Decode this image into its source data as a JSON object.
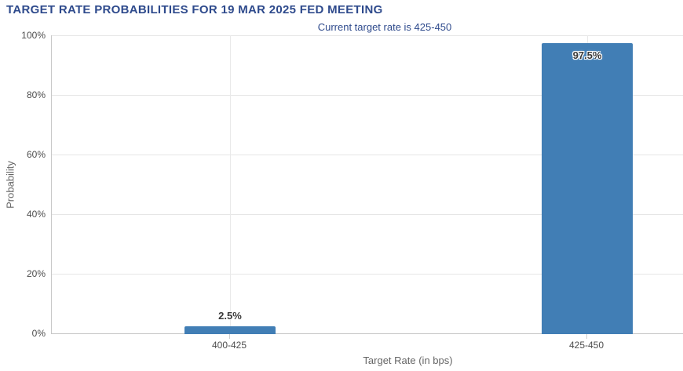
{
  "chart": {
    "title": "TARGET RATE PROBABILITIES FOR 19 MAR 2025 FED MEETING",
    "subtitle": "Current target rate is 425-450",
    "xlabel": "Target Rate (in bps)",
    "ylabel": "Probability"
  },
  "chart_data": {
    "type": "bar",
    "title": "TARGET RATE PROBABILITIES FOR 19 MAR 2025 FED MEETING",
    "subtitle": "Current target rate is 425-450",
    "categories": [
      "400-425",
      "425-450"
    ],
    "values": [
      2.5,
      97.5
    ],
    "data_labels": [
      "2.5%",
      "97.5%"
    ],
    "xlabel": "Target Rate (in bps)",
    "ylabel": "Probability",
    "ylim": [
      0,
      100
    ],
    "yticks": [
      "0%",
      "20%",
      "40%",
      "60%",
      "80%",
      "100%"
    ],
    "grid": true,
    "legend_position": "none",
    "colors": {
      "bar": "#417eb5",
      "title_text": "#2e4a8c",
      "tick_text": "#4d4d4d",
      "axis_title_text": "#666666",
      "gridline": "#e6e6e6"
    }
  }
}
